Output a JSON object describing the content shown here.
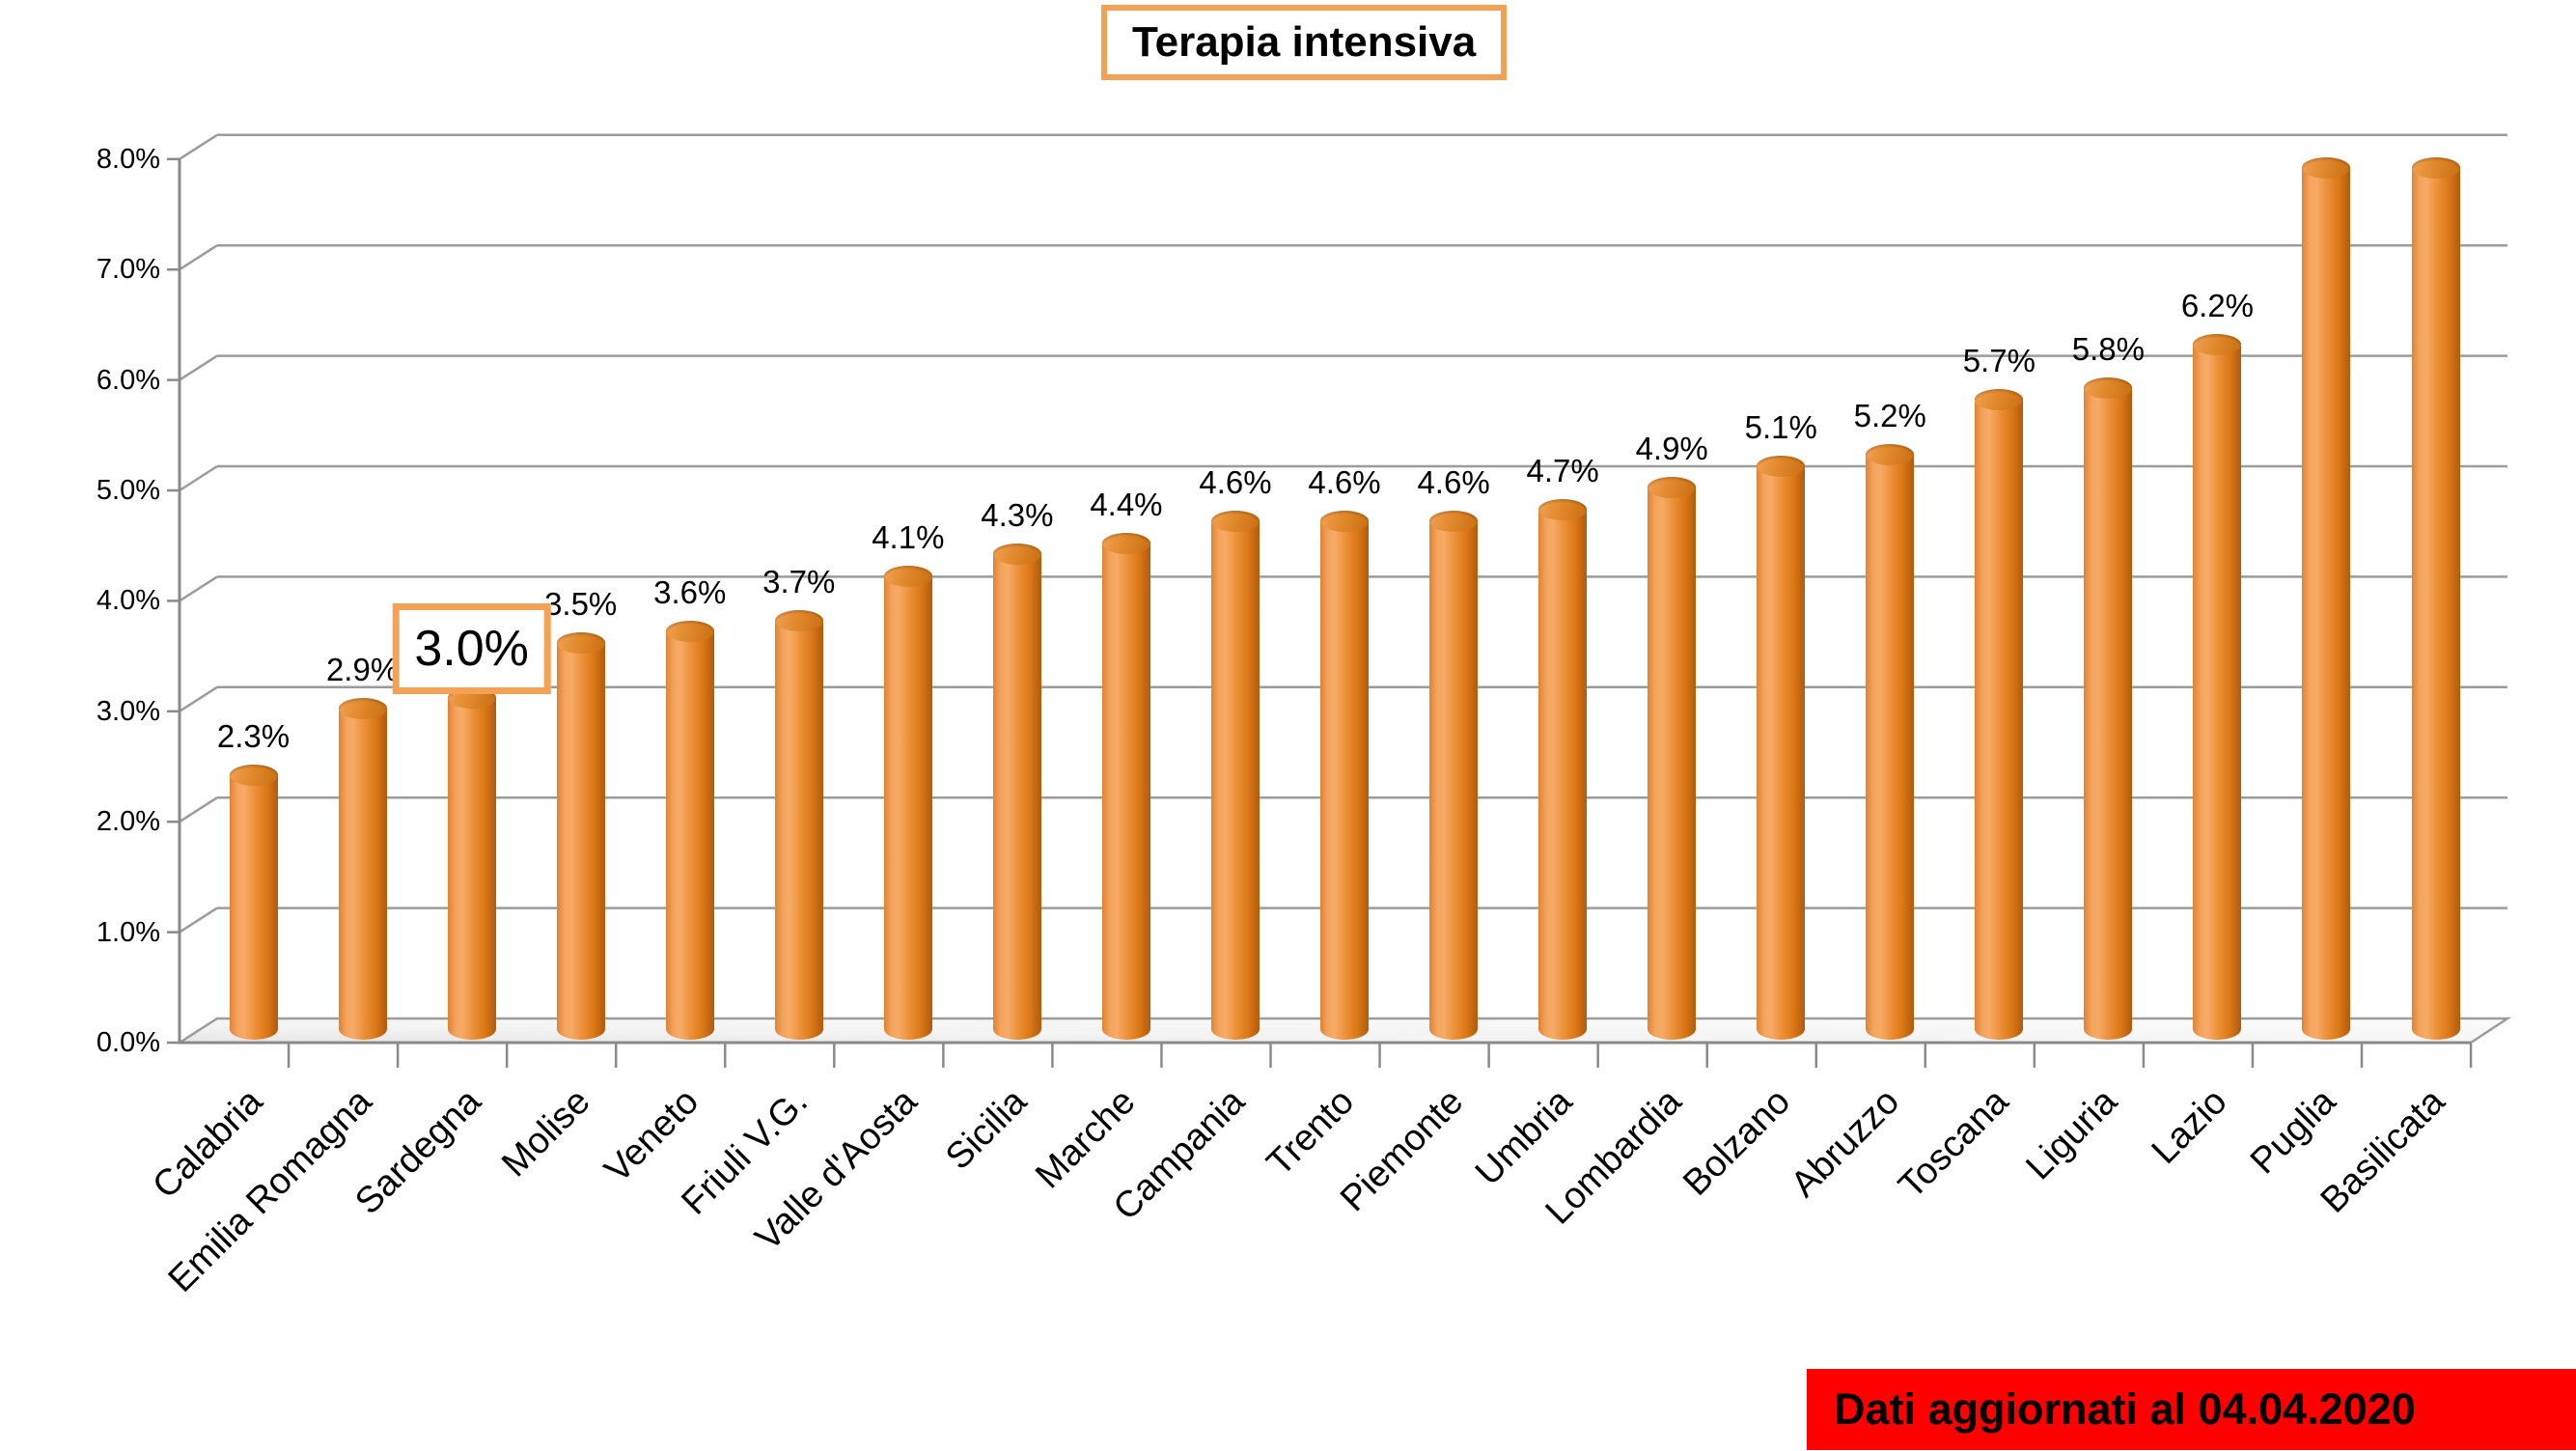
{
  "title": {
    "label": "Terapia intensiva"
  },
  "footer": {
    "label": "Dati aggiornati al 04.04.2020"
  },
  "colors": {
    "bar_orange": "#E8872F",
    "accent_border_orange": "#F2A155",
    "banner_red": "#FF0000",
    "gridline_gray": "#9B9B9B",
    "text_black": "#000000"
  },
  "chart_data": {
    "type": "bar",
    "style": "3d-cylinder",
    "title": "Terapia intensiva",
    "xlabel": "",
    "ylabel": "",
    "grid": true,
    "legend_position": "none",
    "ylim": [
      0,
      8
    ],
    "ytick_labels": [
      "0.0%",
      "1.0%",
      "2.0%",
      "3.0%",
      "4.0%",
      "5.0%",
      "6.0%",
      "7.0%",
      "8.0%"
    ],
    "categories": [
      "Calabria",
      "Emilia Romagna",
      "Sardegna",
      "Molise",
      "Veneto",
      "Friuli V.G.",
      "Valle d'Aosta",
      "Sicilia",
      "Marche",
      "Campania",
      "Trento",
      "Piemonte",
      "Umbria",
      "Lombardia",
      "Bolzano",
      "Abruzzo",
      "Toscana",
      "Liguria",
      "Lazio",
      "Puglia",
      "Basilicata"
    ],
    "values": [
      2.3,
      2.9,
      3.0,
      3.5,
      3.6,
      3.7,
      4.1,
      4.3,
      4.4,
      4.6,
      4.6,
      4.6,
      4.7,
      4.9,
      5.1,
      5.2,
      5.7,
      5.8,
      6.2,
      7.8,
      7.8
    ],
    "data_labels": [
      "2.3%",
      "2.9%",
      "3.0%",
      "3.5%",
      "3.6%",
      "3.7%",
      "4.1%",
      "4.3%",
      "4.4%",
      "4.6%",
      "4.6%",
      "4.6%",
      "4.7%",
      "4.9%",
      "5.1%",
      "5.2%",
      "5.7%",
      "5.8%",
      "6.2%",
      "",
      ""
    ],
    "highlighted_category": "Sardegna",
    "highlighted_label": "3.0%",
    "footer_note": "Dati aggiornati al 04.04.2020"
  }
}
